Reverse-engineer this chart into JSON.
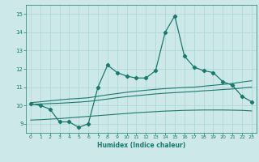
{
  "x": [
    0,
    1,
    2,
    3,
    4,
    5,
    6,
    7,
    8,
    9,
    10,
    11,
    12,
    13,
    14,
    15,
    16,
    17,
    18,
    19,
    20,
    21,
    22,
    23
  ],
  "line_main": [
    10.1,
    10.0,
    9.8,
    9.1,
    9.1,
    8.8,
    9.0,
    11.0,
    12.2,
    11.8,
    11.6,
    11.5,
    11.5,
    11.9,
    14.0,
    14.9,
    12.7,
    12.1,
    11.9,
    11.8,
    11.3,
    11.1,
    10.5,
    10.2
  ],
  "line_upper": [
    10.15,
    10.2,
    10.25,
    10.3,
    10.35,
    10.38,
    10.42,
    10.5,
    10.58,
    10.65,
    10.72,
    10.78,
    10.83,
    10.88,
    10.92,
    10.95,
    10.98,
    11.0,
    11.05,
    11.1,
    11.15,
    11.2,
    11.28,
    11.35
  ],
  "line_mid": [
    10.05,
    10.08,
    10.1,
    10.12,
    10.15,
    10.18,
    10.22,
    10.28,
    10.35,
    10.42,
    10.48,
    10.53,
    10.58,
    10.63,
    10.67,
    10.7,
    10.73,
    10.76,
    10.8,
    10.83,
    10.87,
    10.9,
    10.95,
    11.0
  ],
  "line_lower": [
    9.2,
    9.22,
    9.25,
    9.28,
    9.32,
    9.36,
    9.4,
    9.44,
    9.48,
    9.52,
    9.56,
    9.6,
    9.63,
    9.66,
    9.69,
    9.71,
    9.73,
    9.74,
    9.75,
    9.75,
    9.75,
    9.74,
    9.73,
    9.7
  ],
  "color_main": "#1a7a6e",
  "bg_color": "#cce8e8",
  "grid_color": "#b0d8d8",
  "axis_color": "#1a7a6e",
  "xlabel": "Humidex (Indice chaleur)",
  "ylim": [
    8.5,
    15.5
  ],
  "xlim": [
    -0.5,
    23.5
  ],
  "yticks": [
    9,
    10,
    11,
    12,
    13,
    14,
    15
  ],
  "xticks": [
    0,
    1,
    2,
    3,
    4,
    5,
    6,
    7,
    8,
    9,
    10,
    11,
    12,
    13,
    14,
    15,
    16,
    17,
    18,
    19,
    20,
    21,
    22,
    23
  ]
}
